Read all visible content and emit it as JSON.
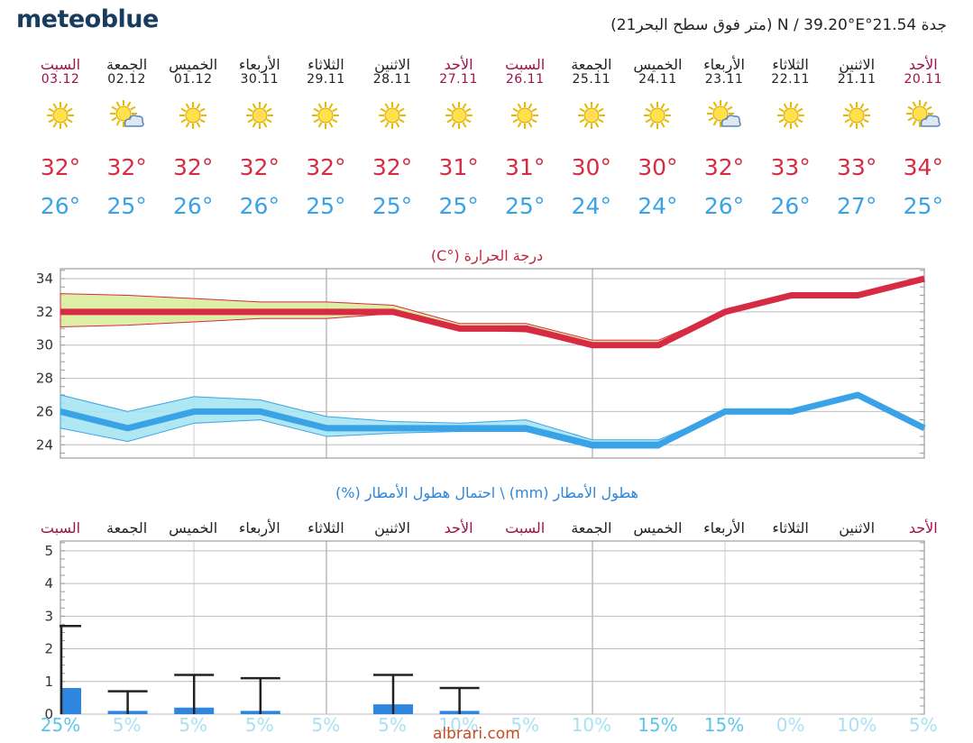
{
  "header": {
    "logo": "meteoblue",
    "location": "جدة   21.54°N / 39.20°E (متر فوق سطح البحر21)"
  },
  "days": [
    {
      "name": "السبت",
      "date": "03.12",
      "weekend": true,
      "icon": "sun-icon",
      "tmax": "32°",
      "tmin": "26°"
    },
    {
      "name": "الجمعة",
      "date": "02.12",
      "weekend": false,
      "icon": "sun-cloud-icon",
      "tmax": "32°",
      "tmin": "25°"
    },
    {
      "name": "الخميس",
      "date": "01.12",
      "weekend": false,
      "icon": "sun-icon",
      "tmax": "32°",
      "tmin": "26°"
    },
    {
      "name": "الأربعاء",
      "date": "30.11",
      "weekend": false,
      "icon": "sun-icon",
      "tmax": "32°",
      "tmin": "26°"
    },
    {
      "name": "الثلاثاء",
      "date": "29.11",
      "weekend": false,
      "icon": "sun-icon",
      "tmax": "32°",
      "tmin": "25°"
    },
    {
      "name": "الاثنين",
      "date": "28.11",
      "weekend": false,
      "icon": "sun-icon",
      "tmax": "32°",
      "tmin": "25°"
    },
    {
      "name": "الأحد",
      "date": "27.11",
      "weekend": true,
      "icon": "sun-icon",
      "tmax": "31°",
      "tmin": "25°"
    },
    {
      "name": "السبت",
      "date": "26.11",
      "weekend": true,
      "icon": "sun-icon",
      "tmax": "31°",
      "tmin": "25°"
    },
    {
      "name": "الجمعة",
      "date": "25.11",
      "weekend": false,
      "icon": "sun-icon",
      "tmax": "30°",
      "tmin": "24°"
    },
    {
      "name": "الخميس",
      "date": "24.11",
      "weekend": false,
      "icon": "sun-icon",
      "tmax": "30°",
      "tmin": "24°"
    },
    {
      "name": "الأربعاء",
      "date": "23.11",
      "weekend": false,
      "icon": "sun-cloud-icon",
      "tmax": "32°",
      "tmin": "26°"
    },
    {
      "name": "الثلاثاء",
      "date": "22.11",
      "weekend": false,
      "icon": "sun-icon",
      "tmax": "33°",
      "tmin": "26°"
    },
    {
      "name": "الاثنين",
      "date": "21.11",
      "weekend": false,
      "icon": "sun-icon",
      "tmax": "33°",
      "tmin": "27°"
    },
    {
      "name": "الأحد",
      "date": "20.11",
      "weekend": true,
      "icon": "sun-cloud-icon",
      "tmax": "34°",
      "tmin": "25°"
    }
  ],
  "colors": {
    "weekend": "#a0104a",
    "weekday": "#222222",
    "tmax": "#d62b43",
    "tmin": "#3aa3e8",
    "max_band": "#d9ec9c",
    "min_band": "#a6e4f2",
    "rain_bar": "#2e86de",
    "pct_strong": "#5cc6e8",
    "pct_weak": "#a8e2f2"
  },
  "chart_data": [
    {
      "type": "line",
      "title": "درجة الحرارة (°C)",
      "x": [
        "03.12",
        "02.12",
        "01.12",
        "30.11",
        "29.11",
        "28.11",
        "27.11",
        "26.11",
        "25.11",
        "24.11",
        "23.11",
        "22.11",
        "21.11",
        "20.11"
      ],
      "series": [
        {
          "values": [
            32,
            32,
            32,
            32,
            32,
            32,
            31,
            31,
            30,
            30,
            32,
            33,
            33,
            34
          ],
          "band_low": [
            31.1,
            31.2,
            31.4,
            31.6,
            31.6,
            31.9,
            30.9,
            30.8,
            29.9,
            29.9,
            32,
            33,
            33,
            34
          ],
          "band_high": [
            33.1,
            33.0,
            32.8,
            32.6,
            32.6,
            32.4,
            31.3,
            31.3,
            30.3,
            30.3,
            32,
            33,
            33,
            34
          ]
        },
        {
          "values": [
            26,
            25,
            26,
            26,
            25,
            25,
            25,
            25,
            24,
            24,
            26,
            26,
            27,
            25
          ],
          "band_low": [
            25,
            24.2,
            25.3,
            25.5,
            24.5,
            24.7,
            24.8,
            24.8,
            23.8,
            23.8,
            26,
            26,
            27,
            25
          ],
          "band_high": [
            27,
            26,
            26.9,
            26.7,
            25.7,
            25.4,
            25.3,
            25.5,
            24.3,
            24.3,
            26,
            26,
            27,
            25
          ]
        }
      ],
      "yticks": [
        24,
        26,
        28,
        30,
        32,
        34
      ],
      "ylim": [
        23.2,
        34.6
      ],
      "grid": true
    },
    {
      "type": "bar",
      "title": "هطول الأمطار (mm) \\ احتمال هطول الأمطار (%)",
      "day_labels": [
        "السبت",
        "الجمعة",
        "الخميس",
        "الأربعاء",
        "الثلاثاء",
        "الاثنين",
        "الأحد",
        "السبت",
        "الجمعة",
        "الخميس",
        "الأربعاء",
        "الثلاثاء",
        "الاثنين",
        "الأحد"
      ],
      "values": [
        0.8,
        0.1,
        0.2,
        0.1,
        0,
        0.3,
        0.1,
        0,
        0,
        0,
        0,
        0,
        0,
        0
      ],
      "error_high": [
        2.7,
        0.7,
        1.2,
        1.1,
        0,
        1.2,
        0.8,
        0,
        0,
        0,
        0,
        0,
        0,
        0
      ],
      "probability": [
        "25%",
        "5%",
        "5%",
        "5%",
        "5%",
        "5%",
        "10%",
        "5%",
        "10%",
        "15%",
        "15%",
        "0%",
        "10%",
        "5%"
      ],
      "probability_strong": [
        true,
        false,
        false,
        false,
        false,
        false,
        false,
        false,
        false,
        true,
        true,
        false,
        false,
        false
      ],
      "yticks": [
        0,
        1,
        2,
        3,
        4,
        5
      ],
      "ylim": [
        0,
        5.3
      ],
      "grid": true
    }
  ],
  "watermark": "albrari.com"
}
